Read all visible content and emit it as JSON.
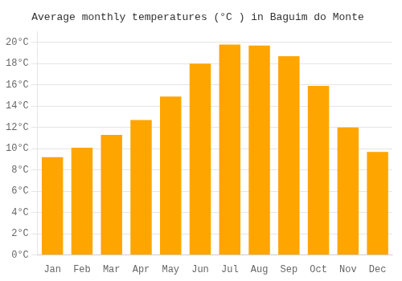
{
  "chart_data": {
    "type": "bar",
    "title": "Average monthly temperatures (°C ) in Baguim do Monte",
    "categories": [
      "Jan",
      "Feb",
      "Mar",
      "Apr",
      "May",
      "Jun",
      "Jul",
      "Aug",
      "Sep",
      "Oct",
      "Nov",
      "Dec"
    ],
    "values": [
      9.2,
      10.1,
      11.3,
      12.7,
      14.9,
      18.0,
      19.8,
      19.7,
      18.7,
      15.9,
      12.0,
      9.7
    ],
    "color": "#FFA500",
    "ylim": [
      0,
      21
    ],
    "yticks": [
      {
        "value": 0,
        "label": "0°C"
      },
      {
        "value": 2,
        "label": "2°C"
      },
      {
        "value": 4,
        "label": "4°C"
      },
      {
        "value": 6,
        "label": "6°C"
      },
      {
        "value": 8,
        "label": "8°C"
      },
      {
        "value": 10,
        "label": "10°C"
      },
      {
        "value": 12,
        "label": "12°C"
      },
      {
        "value": 14,
        "label": "14°C"
      },
      {
        "value": 16,
        "label": "16°C"
      },
      {
        "value": 18,
        "label": "18°C"
      },
      {
        "value": 20,
        "label": "20°C"
      }
    ],
    "grid": true
  }
}
